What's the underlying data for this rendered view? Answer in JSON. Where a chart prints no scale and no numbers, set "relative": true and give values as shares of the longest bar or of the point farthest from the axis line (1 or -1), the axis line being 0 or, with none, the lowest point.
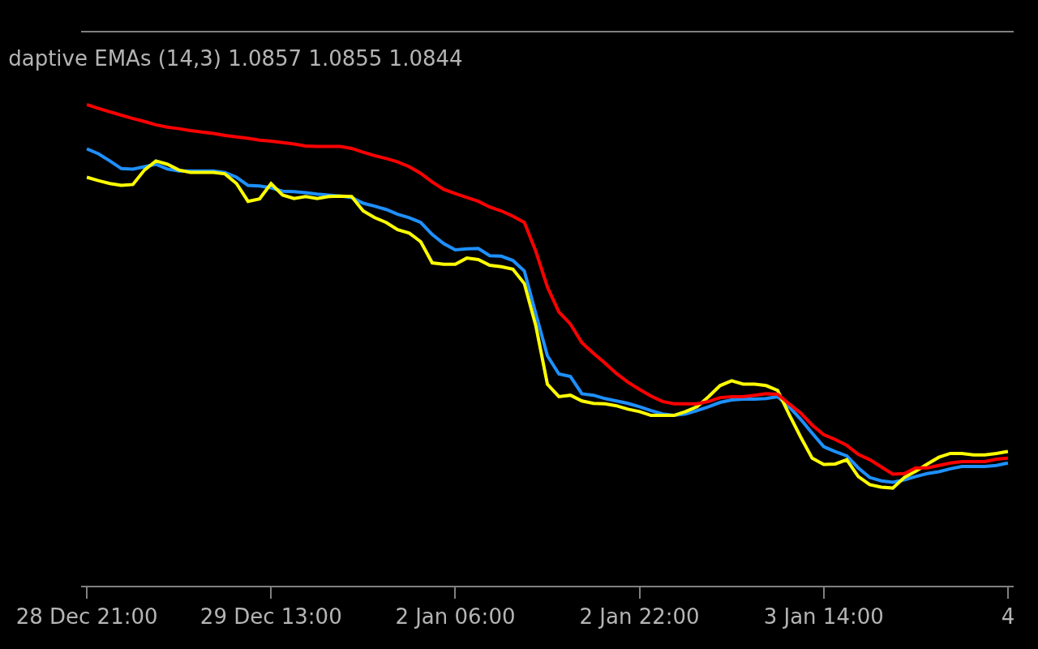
{
  "chart_data": {
    "type": "line",
    "title": "daptive EMAs (14,3) 1.0857 1.0855 1.0844",
    "relative": true,
    "tick_labels": "x",
    "categories": [
      "28 Dec 21:00",
      null,
      null,
      null,
      null,
      null,
      null,
      null,
      null,
      null,
      null,
      null,
      null,
      null,
      null,
      null,
      "29 Dec 13:00",
      null,
      null,
      null,
      null,
      null,
      null,
      null,
      null,
      null,
      null,
      null,
      null,
      null,
      null,
      null,
      "2 Jan 06:00",
      null,
      null,
      null,
      null,
      null,
      null,
      null,
      null,
      null,
      null,
      null,
      null,
      null,
      null,
      null,
      "2 Jan 22:00",
      null,
      null,
      null,
      null,
      null,
      null,
      null,
      null,
      null,
      null,
      null,
      null,
      null,
      null,
      null,
      "3 Jan 14:00",
      null,
      null,
      null,
      null,
      null,
      null,
      null,
      null,
      null,
      null,
      null,
      null,
      null,
      null,
      null,
      "4"
    ],
    "series": [
      {
        "color": "#1e90ff",
        "values": [
          0.908,
          0.898,
          0.883,
          0.867,
          0.866,
          0.871,
          0.876,
          0.866,
          0.862,
          0.862,
          0.862,
          0.862,
          0.859,
          0.849,
          0.832,
          0.831,
          0.827,
          0.82,
          0.819,
          0.817,
          0.814,
          0.812,
          0.81,
          0.807,
          0.795,
          0.789,
          0.782,
          0.772,
          0.765,
          0.755,
          0.73,
          0.711,
          0.698,
          0.7,
          0.701,
          0.686,
          0.685,
          0.676,
          0.654,
          0.565,
          0.478,
          0.44,
          0.435,
          0.399,
          0.396,
          0.389,
          0.384,
          0.379,
          0.372,
          0.364,
          0.357,
          0.354,
          0.357,
          0.364,
          0.372,
          0.381,
          0.386,
          0.388,
          0.388,
          0.389,
          0.393,
          0.372,
          0.346,
          0.317,
          0.289,
          0.279,
          0.27,
          0.245,
          0.225,
          0.218,
          0.215,
          0.22,
          0.227,
          0.233,
          0.237,
          0.243,
          0.248,
          0.248,
          0.248,
          0.25,
          0.255
        ]
      },
      {
        "color": "#ffff00",
        "values": [
          0.849,
          0.842,
          0.836,
          0.832,
          0.834,
          0.864,
          0.883,
          0.876,
          0.864,
          0.859,
          0.859,
          0.859,
          0.856,
          0.836,
          0.799,
          0.804,
          0.836,
          0.812,
          0.805,
          0.809,
          0.805,
          0.809,
          0.81,
          0.809,
          0.779,
          0.765,
          0.755,
          0.74,
          0.733,
          0.715,
          0.671,
          0.668,
          0.668,
          0.681,
          0.678,
          0.666,
          0.663,
          0.658,
          0.628,
          0.54,
          0.419,
          0.393,
          0.396,
          0.384,
          0.379,
          0.378,
          0.374,
          0.367,
          0.362,
          0.354,
          0.354,
          0.354,
          0.362,
          0.372,
          0.393,
          0.416,
          0.426,
          0.419,
          0.419,
          0.416,
          0.406,
          0.356,
          0.309,
          0.265,
          0.252,
          0.253,
          0.262,
          0.227,
          0.21,
          0.205,
          0.203,
          0.225,
          0.238,
          0.253,
          0.267,
          0.275,
          0.275,
          0.272,
          0.272,
          0.275,
          0.279
        ]
      },
      {
        "color": "#ff0000",
        "values": [
          1.0,
          0.992,
          0.985,
          0.978,
          0.971,
          0.965,
          0.958,
          0.953,
          0.95,
          0.946,
          0.943,
          0.94,
          0.936,
          0.933,
          0.93,
          0.926,
          0.924,
          0.921,
          0.918,
          0.914,
          0.913,
          0.913,
          0.913,
          0.909,
          0.901,
          0.894,
          0.888,
          0.881,
          0.871,
          0.857,
          0.839,
          0.824,
          0.815,
          0.807,
          0.799,
          0.787,
          0.779,
          0.768,
          0.755,
          0.695,
          0.621,
          0.569,
          0.544,
          0.505,
          0.483,
          0.463,
          0.441,
          0.423,
          0.408,
          0.394,
          0.383,
          0.378,
          0.378,
          0.378,
          0.383,
          0.391,
          0.393,
          0.393,
          0.396,
          0.399,
          0.398,
          0.378,
          0.359,
          0.334,
          0.314,
          0.304,
          0.292,
          0.273,
          0.262,
          0.247,
          0.232,
          0.233,
          0.245,
          0.245,
          0.25,
          0.255,
          0.258,
          0.258,
          0.258,
          0.263,
          0.265
        ]
      }
    ]
  }
}
